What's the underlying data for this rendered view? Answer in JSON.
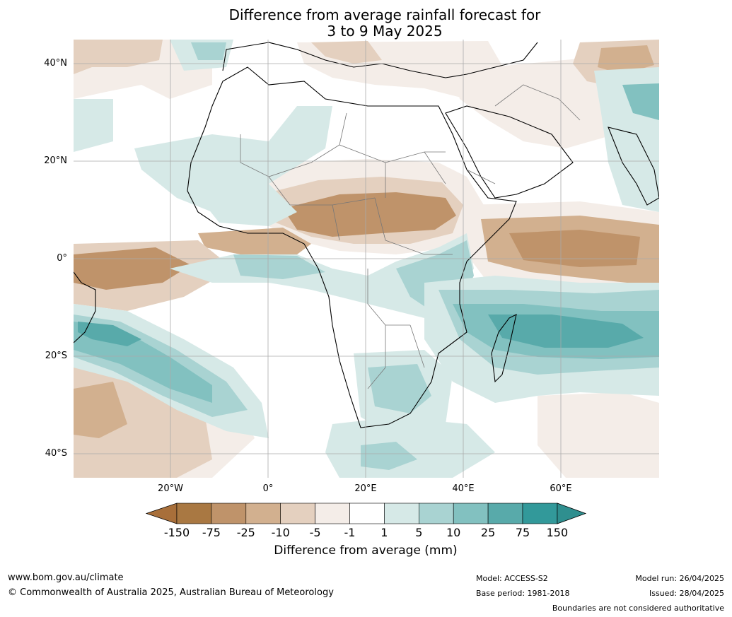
{
  "title": {
    "line1": "Difference from average rainfall forecast for",
    "line2": "3 to 9 May 2025"
  },
  "axes": {
    "lat_labels": [
      "40°N",
      "20°N",
      "0°",
      "20°S",
      "40°S"
    ],
    "lon_labels": [
      "20°W",
      "0°",
      "20°E",
      "40°E",
      "60°E"
    ]
  },
  "legend": {
    "title": "Difference from average (mm)",
    "ticks": [
      "-150",
      "-75",
      "-25",
      "-10",
      "-5",
      "-1",
      "1",
      "5",
      "10",
      "25",
      "75",
      "150"
    ],
    "colors": [
      "#a86f3a",
      "#a97842",
      "#bf936a",
      "#d2b08f",
      "#e4d0bf",
      "#f4ede8",
      "#ffffff",
      "#d6e9e7",
      "#a9d3d2",
      "#82c1c0",
      "#58aaaa",
      "#32999a",
      "#2f8f8f"
    ],
    "extend": "both"
  },
  "footer": {
    "url": "www.bom.gov.au/climate",
    "copyright": "© Commonwealth of Australia 2025, Australian Bureau of Meteorology",
    "model": "Model: ACCESS-S2",
    "base_period": "Base period: 1981-2018",
    "model_run": "Model run: 26/04/2025",
    "issued": "Issued: 28/04/2025",
    "disclaimer": "Boundaries are not considered authoritative"
  },
  "map": {
    "region": "Africa",
    "graticule": "on",
    "anomaly_colors": {
      "dry_strong": "#bf936a",
      "dry_moderate": "#d2b08f",
      "dry_light": "#e4d0bf",
      "dry_slight": "#f4ede8",
      "wet_slight": "#d6e9e7",
      "wet_light": "#a9d3d2",
      "wet_moderate": "#82c1c0",
      "wet_strong": "#58aaaa"
    }
  }
}
